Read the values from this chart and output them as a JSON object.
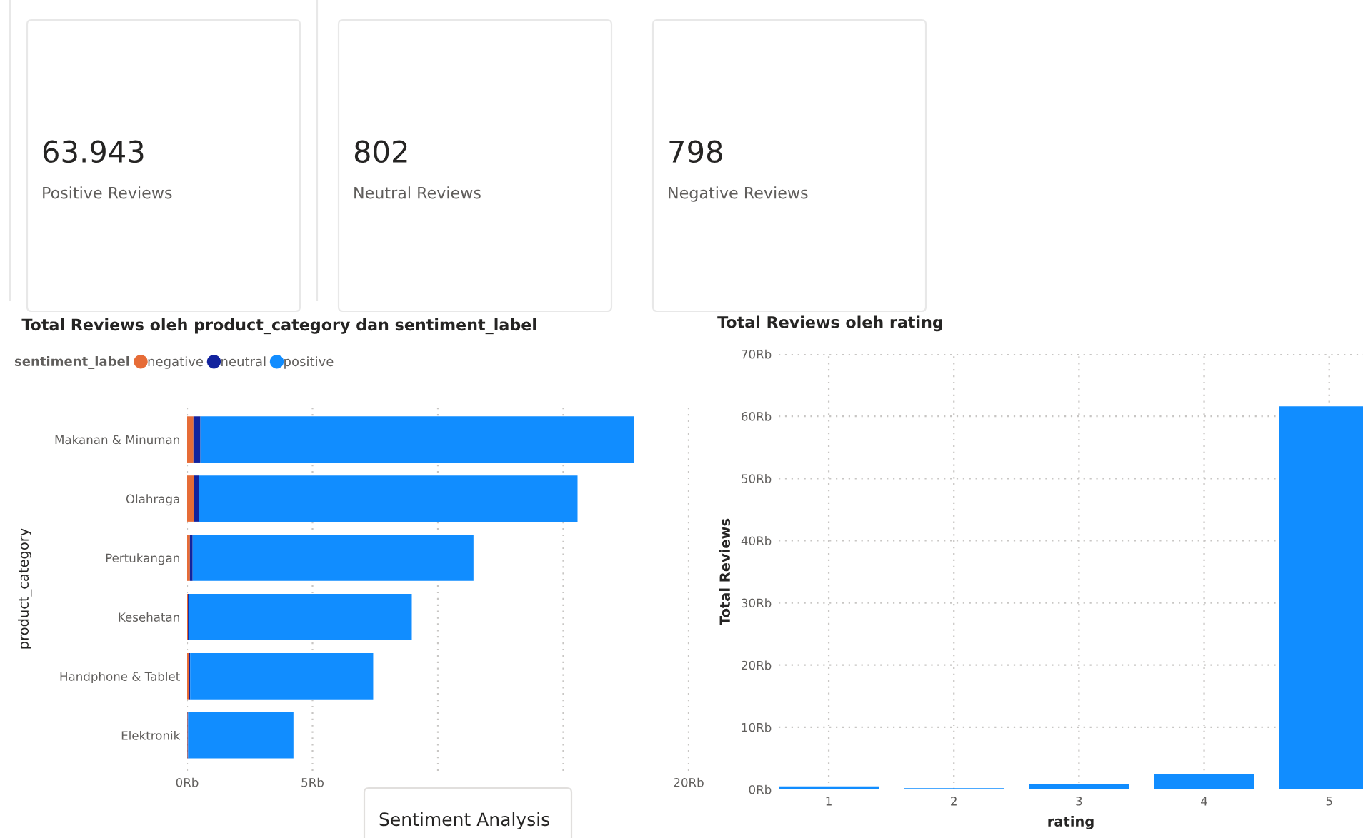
{
  "chart_data": [
    {
      "type": "other",
      "title": "Sentiment Analysis",
      "annotations": [
        "63.943",
        "Positive Reviews",
        "802",
        "Neutral Reviews",
        "798",
        "Negative Reviews"
      ]
    },
    {
      "type": "bar",
      "orientation": "horizontal",
      "stacked": true,
      "title": "Total Reviews oleh product_category dan sentiment_label",
      "ylabel": "product_category",
      "legend_title": "sentiment_label",
      "legend": "top left",
      "categories": [
        "Makanan & Minuman",
        "Olahraga",
        "Pertukangan",
        "Kesehatan",
        "Handphone & Tablet",
        "Elektronik"
      ],
      "series": [
        {
          "name": "negative",
          "color": "#e66c37",
          "values": [
            0.25,
            0.26,
            0.11,
            0.03,
            0.06,
            0.02
          ]
        },
        {
          "name": "neutral",
          "color": "#12239e",
          "values": [
            0.28,
            0.21,
            0.11,
            0.03,
            0.06,
            0.02
          ]
        },
        {
          "name": "positive",
          "color": "#118dff",
          "values": [
            17.3,
            15.1,
            11.2,
            8.9,
            7.3,
            4.2
          ]
        }
      ],
      "xlim": [
        0,
        20
      ],
      "xticks": [
        {
          "value": 0,
          "label": "0Rb"
        },
        {
          "value": 5,
          "label": "5Rb"
        },
        {
          "value": 10,
          "label": null
        },
        {
          "value": 15,
          "label": null
        },
        {
          "value": 20,
          "label": "20Rb"
        }
      ],
      "grid": "x"
    },
    {
      "type": "bar",
      "title": "Total Reviews oleh rating",
      "xlabel": "rating",
      "ylabel": "Total Reviews",
      "categories": [
        "1",
        "2",
        "3",
        "4",
        "5"
      ],
      "values": [
        0.5,
        0.2,
        0.8,
        2.4,
        61.6
      ],
      "color": "#118dff",
      "ylim": [
        0,
        70
      ],
      "yticks": [
        {
          "value": 0,
          "label": "0Rb"
        },
        {
          "value": 10,
          "label": "10Rb"
        },
        {
          "value": 20,
          "label": "20Rb"
        },
        {
          "value": 30,
          "label": "30Rb"
        },
        {
          "value": 40,
          "label": "40Rb"
        },
        {
          "value": 50,
          "label": "50Rb"
        },
        {
          "value": 60,
          "label": "60Rb"
        },
        {
          "value": 70,
          "label": "70Rb"
        }
      ],
      "grid": true
    }
  ]
}
